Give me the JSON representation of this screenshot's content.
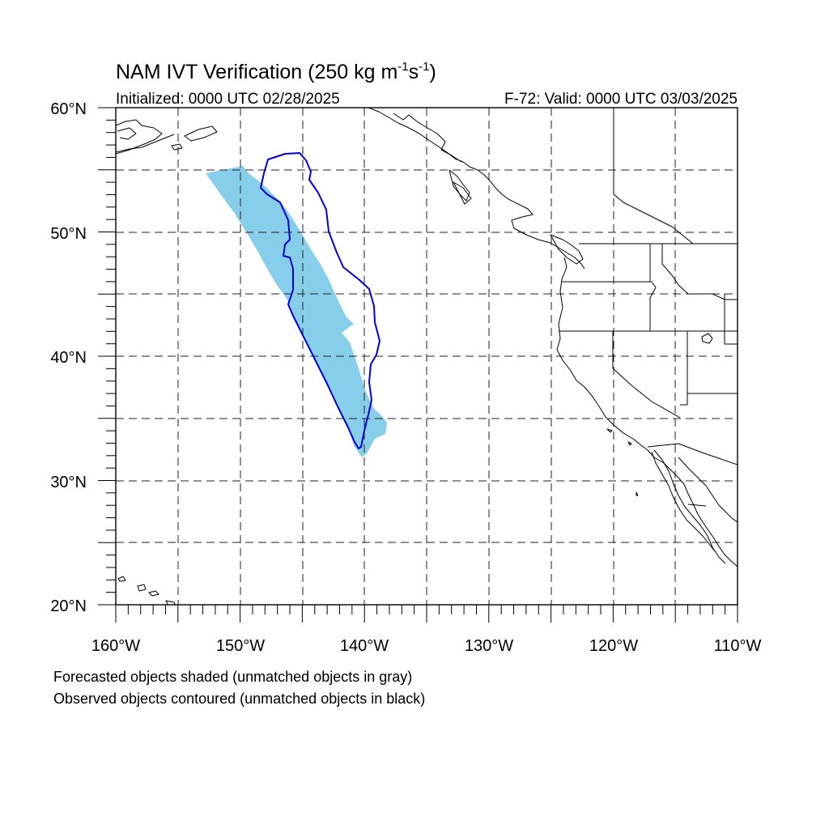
{
  "map": {
    "title_prefix": "NAM IVT Verification (250 kg m",
    "title_sup1": "-1",
    "title_mid": "s",
    "title_sup2": "-1",
    "title_suffix": ")",
    "initialized": "Initialized: 0000 UTC 02/28/2025",
    "valid": "F-72: Valid: 0000 UTC 03/03/2025",
    "lat_labels": [
      {
        "value": 60,
        "text": "60°N"
      },
      {
        "value": 50,
        "text": "50°N"
      },
      {
        "value": 40,
        "text": "40°N"
      },
      {
        "value": 30,
        "text": "30°N"
      },
      {
        "value": 20,
        "text": "20°N"
      }
    ],
    "lon_labels": [
      {
        "value": -160,
        "text": "160°W"
      },
      {
        "value": -150,
        "text": "150°W"
      },
      {
        "value": -140,
        "text": "140°W"
      },
      {
        "value": -130,
        "text": "130°W"
      },
      {
        "value": -120,
        "text": "120°W"
      },
      {
        "value": -110,
        "text": "110°W"
      }
    ],
    "extent": {
      "lon_min": -160,
      "lon_max": -110,
      "lat_min": 20,
      "lat_max": 60
    },
    "forecast_color": "#87ceeb",
    "observed_color": "#0000dd"
  },
  "footer": {
    "line1": "Forecasted objects shaded (unmatched objects in gray)",
    "line2": "Observed objects contoured (unmatched objects in black)"
  }
}
